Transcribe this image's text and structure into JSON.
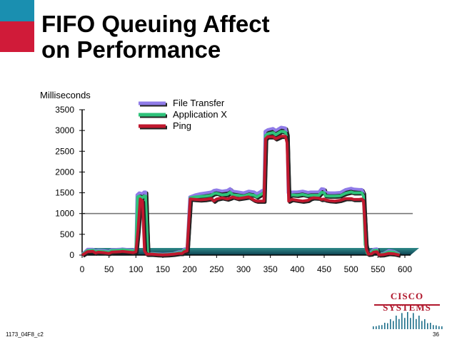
{
  "slide": {
    "title": "FIFO Queuing Affect\non Performance",
    "code": "1173_04F8_c2",
    "page_number": "36",
    "logo_text": "CISCO SYSTEMS",
    "corner_colors": [
      "#1a8fb0",
      "#d01b39"
    ]
  },
  "chart_data": {
    "type": "line",
    "title": "",
    "ylabel": "Milliseconds",
    "xlabel": "",
    "xlim": [
      0,
      600
    ],
    "ylim": [
      0,
      3500
    ],
    "x_ticks": [
      "0",
      "50",
      "100",
      "150",
      "200",
      "250",
      "300",
      "350",
      "400",
      "450",
      "500",
      "550",
      "600"
    ],
    "y_ticks": [
      "3500",
      "3000",
      "2500",
      "2000",
      "1500",
      "1000",
      "500",
      "0"
    ],
    "reference_line": 1000,
    "legend_position": "top-right",
    "series": [
      {
        "name": "File Transfer",
        "color": "#8f7be8",
        "points": [
          [
            0,
            20
          ],
          [
            5,
            80
          ],
          [
            10,
            140
          ],
          [
            20,
            140
          ],
          [
            25,
            100
          ],
          [
            30,
            120
          ],
          [
            40,
            110
          ],
          [
            50,
            90
          ],
          [
            55,
            130
          ],
          [
            70,
            140
          ],
          [
            75,
            150
          ],
          [
            95,
            120
          ],
          [
            100,
            160
          ],
          [
            100,
            150
          ],
          [
            102,
            1450
          ],
          [
            106,
            1500
          ],
          [
            112,
            1480
          ],
          [
            115,
            1520
          ],
          [
            118,
            1520
          ],
          [
            122,
            30
          ],
          [
            130,
            40
          ],
          [
            140,
            30
          ],
          [
            150,
            20
          ],
          [
            160,
            30
          ],
          [
            170,
            40
          ],
          [
            180,
            80
          ],
          [
            186,
            80
          ],
          [
            190,
            150
          ],
          [
            195,
            150
          ],
          [
            200,
            1400
          ],
          [
            210,
            1450
          ],
          [
            220,
            1480
          ],
          [
            230,
            1500
          ],
          [
            240,
            1520
          ],
          [
            245,
            1560
          ],
          [
            250,
            1570
          ],
          [
            260,
            1540
          ],
          [
            270,
            1560
          ],
          [
            275,
            1600
          ],
          [
            280,
            1540
          ],
          [
            290,
            1520
          ],
          [
            300,
            1500
          ],
          [
            310,
            1540
          ],
          [
            320,
            1520
          ],
          [
            325,
            1480
          ],
          [
            330,
            1520
          ],
          [
            335,
            1560
          ],
          [
            338,
            1560
          ],
          [
            340,
            2980
          ],
          [
            345,
            3020
          ],
          [
            355,
            3050
          ],
          [
            360,
            3000
          ],
          [
            370,
            3080
          ],
          [
            378,
            3060
          ],
          [
            381,
            2900
          ],
          [
            383,
            1500
          ],
          [
            390,
            1520
          ],
          [
            400,
            1520
          ],
          [
            410,
            1540
          ],
          [
            420,
            1510
          ],
          [
            425,
            1520
          ],
          [
            430,
            1520
          ],
          [
            440,
            1520
          ],
          [
            445,
            1600
          ],
          [
            450,
            1590
          ],
          [
            452,
            1510
          ],
          [
            460,
            1500
          ],
          [
            470,
            1500
          ],
          [
            480,
            1510
          ],
          [
            490,
            1580
          ],
          [
            500,
            1610
          ],
          [
            505,
            1590
          ],
          [
            515,
            1580
          ],
          [
            520,
            1580
          ],
          [
            523,
            1500
          ],
          [
            527,
            300
          ],
          [
            531,
            60
          ],
          [
            538,
            80
          ],
          [
            542,
            140
          ],
          [
            548,
            150
          ],
          [
            552,
            20
          ],
          [
            560,
            40
          ],
          [
            570,
            110
          ],
          [
            580,
            90
          ],
          [
            590,
            20
          ]
        ]
      },
      {
        "name": "Application X",
        "color": "#2fc27a",
        "points": [
          [
            0,
            10
          ],
          [
            5,
            60
          ],
          [
            10,
            110
          ],
          [
            20,
            120
          ],
          [
            25,
            80
          ],
          [
            30,
            100
          ],
          [
            40,
            90
          ],
          [
            50,
            70
          ],
          [
            55,
            110
          ],
          [
            70,
            120
          ],
          [
            75,
            130
          ],
          [
            95,
            100
          ],
          [
            100,
            130
          ],
          [
            103,
            1400
          ],
          [
            106,
            1420
          ],
          [
            112,
            1380
          ],
          [
            115,
            1420
          ],
          [
            118,
            1420
          ],
          [
            122,
            20
          ],
          [
            130,
            30
          ],
          [
            140,
            20
          ],
          [
            150,
            10
          ],
          [
            160,
            20
          ],
          [
            170,
            30
          ],
          [
            180,
            60
          ],
          [
            186,
            60
          ],
          [
            190,
            120
          ],
          [
            195,
            130
          ],
          [
            201,
            1380
          ],
          [
            210,
            1400
          ],
          [
            220,
            1410
          ],
          [
            230,
            1420
          ],
          [
            240,
            1440
          ],
          [
            245,
            1480
          ],
          [
            250,
            1490
          ],
          [
            260,
            1450
          ],
          [
            270,
            1460
          ],
          [
            275,
            1510
          ],
          [
            280,
            1450
          ],
          [
            290,
            1440
          ],
          [
            300,
            1420
          ],
          [
            310,
            1460
          ],
          [
            320,
            1440
          ],
          [
            325,
            1400
          ],
          [
            330,
            1440
          ],
          [
            335,
            1480
          ],
          [
            338,
            1480
          ],
          [
            341,
            2880
          ],
          [
            345,
            2920
          ],
          [
            355,
            2950
          ],
          [
            360,
            2900
          ],
          [
            370,
            2980
          ],
          [
            378,
            2960
          ],
          [
            381,
            2800
          ],
          [
            384,
            1420
          ],
          [
            390,
            1450
          ],
          [
            400,
            1440
          ],
          [
            410,
            1460
          ],
          [
            420,
            1430
          ],
          [
            425,
            1440
          ],
          [
            430,
            1440
          ],
          [
            440,
            1440
          ],
          [
            445,
            1510
          ],
          [
            450,
            1500
          ],
          [
            452,
            1430
          ],
          [
            460,
            1420
          ],
          [
            470,
            1420
          ],
          [
            480,
            1430
          ],
          [
            490,
            1490
          ],
          [
            500,
            1520
          ],
          [
            505,
            1500
          ],
          [
            515,
            1500
          ],
          [
            520,
            1500
          ],
          [
            523,
            1420
          ],
          [
            526,
            250
          ],
          [
            530,
            40
          ],
          [
            538,
            60
          ],
          [
            542,
            110
          ],
          [
            548,
            120
          ],
          [
            552,
            10
          ],
          [
            560,
            30
          ],
          [
            570,
            80
          ],
          [
            580,
            70
          ],
          [
            590,
            10
          ]
        ]
      },
      {
        "name": "Ping",
        "color": "#c0182e",
        "points": [
          [
            0,
            0
          ],
          [
            5,
            40
          ],
          [
            10,
            80
          ],
          [
            20,
            90
          ],
          [
            25,
            50
          ],
          [
            30,
            70
          ],
          [
            40,
            60
          ],
          [
            50,
            40
          ],
          [
            55,
            70
          ],
          [
            70,
            80
          ],
          [
            75,
            90
          ],
          [
            95,
            60
          ],
          [
            100,
            80
          ],
          [
            104,
            600
          ],
          [
            108,
            1350
          ],
          [
            112,
            1300
          ],
          [
            114,
            700
          ],
          [
            116,
            100
          ],
          [
            120,
            20
          ],
          [
            130,
            20
          ],
          [
            140,
            10
          ],
          [
            150,
            5
          ],
          [
            160,
            10
          ],
          [
            170,
            20
          ],
          [
            180,
            40
          ],
          [
            186,
            40
          ],
          [
            190,
            80
          ],
          [
            195,
            100
          ],
          [
            201,
            1350
          ],
          [
            210,
            1340
          ],
          [
            220,
            1330
          ],
          [
            230,
            1340
          ],
          [
            240,
            1360
          ],
          [
            245,
            1300
          ],
          [
            250,
            1350
          ],
          [
            260,
            1380
          ],
          [
            270,
            1350
          ],
          [
            275,
            1370
          ],
          [
            280,
            1400
          ],
          [
            290,
            1360
          ],
          [
            300,
            1380
          ],
          [
            310,
            1400
          ],
          [
            320,
            1320
          ],
          [
            325,
            1300
          ],
          [
            330,
            1300
          ],
          [
            335,
            1300
          ],
          [
            338,
            1300
          ],
          [
            341,
            2800
          ],
          [
            345,
            2850
          ],
          [
            355,
            2850
          ],
          [
            360,
            2800
          ],
          [
            370,
            2860
          ],
          [
            378,
            2860
          ],
          [
            381,
            2700
          ],
          [
            384,
            1300
          ],
          [
            390,
            1340
          ],
          [
            400,
            1320
          ],
          [
            410,
            1300
          ],
          [
            420,
            1320
          ],
          [
            425,
            1360
          ],
          [
            430,
            1380
          ],
          [
            440,
            1370
          ],
          [
            445,
            1340
          ],
          [
            450,
            1350
          ],
          [
            452,
            1330
          ],
          [
            460,
            1310
          ],
          [
            470,
            1300
          ],
          [
            480,
            1320
          ],
          [
            490,
            1360
          ],
          [
            500,
            1360
          ],
          [
            505,
            1340
          ],
          [
            515,
            1340
          ],
          [
            520,
            1350
          ],
          [
            523,
            1300
          ],
          [
            525,
            900
          ],
          [
            528,
            150
          ],
          [
            532,
            20
          ],
          [
            538,
            30
          ],
          [
            542,
            70
          ],
          [
            548,
            80
          ],
          [
            552,
            5
          ],
          [
            560,
            10
          ],
          [
            570,
            40
          ],
          [
            580,
            30
          ],
          [
            590,
            0
          ]
        ]
      }
    ]
  }
}
